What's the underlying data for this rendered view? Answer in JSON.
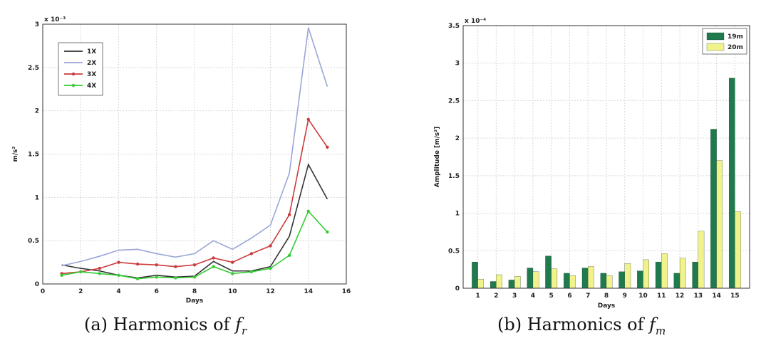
{
  "chart_data": [
    {
      "type": "line",
      "title": "",
      "xlabel": "Days",
      "ylabel": "m/s²",
      "exponent": "x 10⁻³",
      "xlim": [
        0,
        16
      ],
      "ylim": [
        0,
        3
      ],
      "xticks": [
        0,
        2,
        4,
        6,
        8,
        10,
        12,
        14,
        16
      ],
      "yticks": [
        0,
        0.5,
        1,
        1.5,
        2,
        2.5,
        3
      ],
      "ytick_labels": [
        "0",
        "0.5",
        "1",
        "1.5",
        "2",
        "2.5",
        "3"
      ],
      "grid": true,
      "legend_position": "top-left",
      "x": [
        1,
        2,
        3,
        4,
        5,
        6,
        7,
        8,
        9,
        10,
        11,
        12,
        13,
        14,
        15
      ],
      "series": [
        {
          "name": "1X",
          "color": "#333333",
          "marker": "none",
          "values": [
            0.22,
            0.18,
            0.15,
            0.1,
            0.07,
            0.1,
            0.08,
            0.09,
            0.26,
            0.15,
            0.15,
            0.2,
            0.55,
            1.38,
            0.98
          ]
        },
        {
          "name": "2X",
          "color": "#9aa6d8",
          "marker": "none",
          "values": [
            0.21,
            0.26,
            0.32,
            0.39,
            0.4,
            0.35,
            0.31,
            0.35,
            0.5,
            0.4,
            0.53,
            0.68,
            1.28,
            2.96,
            2.28
          ]
        },
        {
          "name": "3X",
          "color": "#cc3b3b",
          "marker": "dot",
          "values": [
            0.12,
            0.14,
            0.18,
            0.25,
            0.23,
            0.22,
            0.2,
            0.22,
            0.3,
            0.25,
            0.35,
            0.44,
            0.8,
            1.9,
            1.58
          ]
        },
        {
          "name": "4X",
          "color": "#33cc33",
          "marker": "dot",
          "values": [
            0.1,
            0.14,
            0.12,
            0.1,
            0.06,
            0.08,
            0.07,
            0.08,
            0.2,
            0.12,
            0.14,
            0.18,
            0.33,
            0.84,
            0.6
          ]
        }
      ]
    },
    {
      "type": "bar",
      "title": "",
      "xlabel": "Days",
      "ylabel": "Amplitude [m/s²]",
      "exponent": "x 10⁻⁴",
      "ylim": [
        0,
        3.5
      ],
      "yticks": [
        0,
        0.5,
        1,
        1.5,
        2,
        2.5,
        3,
        3.5
      ],
      "ytick_labels": [
        "0",
        "0.5",
        "1",
        "1.5",
        "2",
        "2.5",
        "3",
        "3.5"
      ],
      "grid": true,
      "legend_position": "top-right",
      "categories": [
        "1",
        "2",
        "3",
        "4",
        "5",
        "6",
        "7",
        "8",
        "9",
        "10",
        "11",
        "12",
        "13",
        "14",
        "15"
      ],
      "series": [
        {
          "name": "19m",
          "color": "#1f7a4d",
          "values": [
            0.35,
            0.09,
            0.11,
            0.27,
            0.43,
            0.2,
            0.27,
            0.2,
            0.22,
            0.23,
            0.35,
            0.2,
            0.35,
            2.12,
            2.8
          ]
        },
        {
          "name": "20m",
          "color": "#f2f28a",
          "values": [
            0.12,
            0.18,
            0.16,
            0.22,
            0.26,
            0.17,
            0.29,
            0.17,
            0.33,
            0.38,
            0.46,
            0.4,
            0.76,
            1.7,
            1.02
          ]
        }
      ]
    }
  ],
  "captions": {
    "a_prefix": "(a) Harmonics of ",
    "a_symbol": "f",
    "a_sub": "r",
    "b_prefix": "(b) Harmonics of ",
    "b_symbol": "f",
    "b_sub": "m"
  }
}
